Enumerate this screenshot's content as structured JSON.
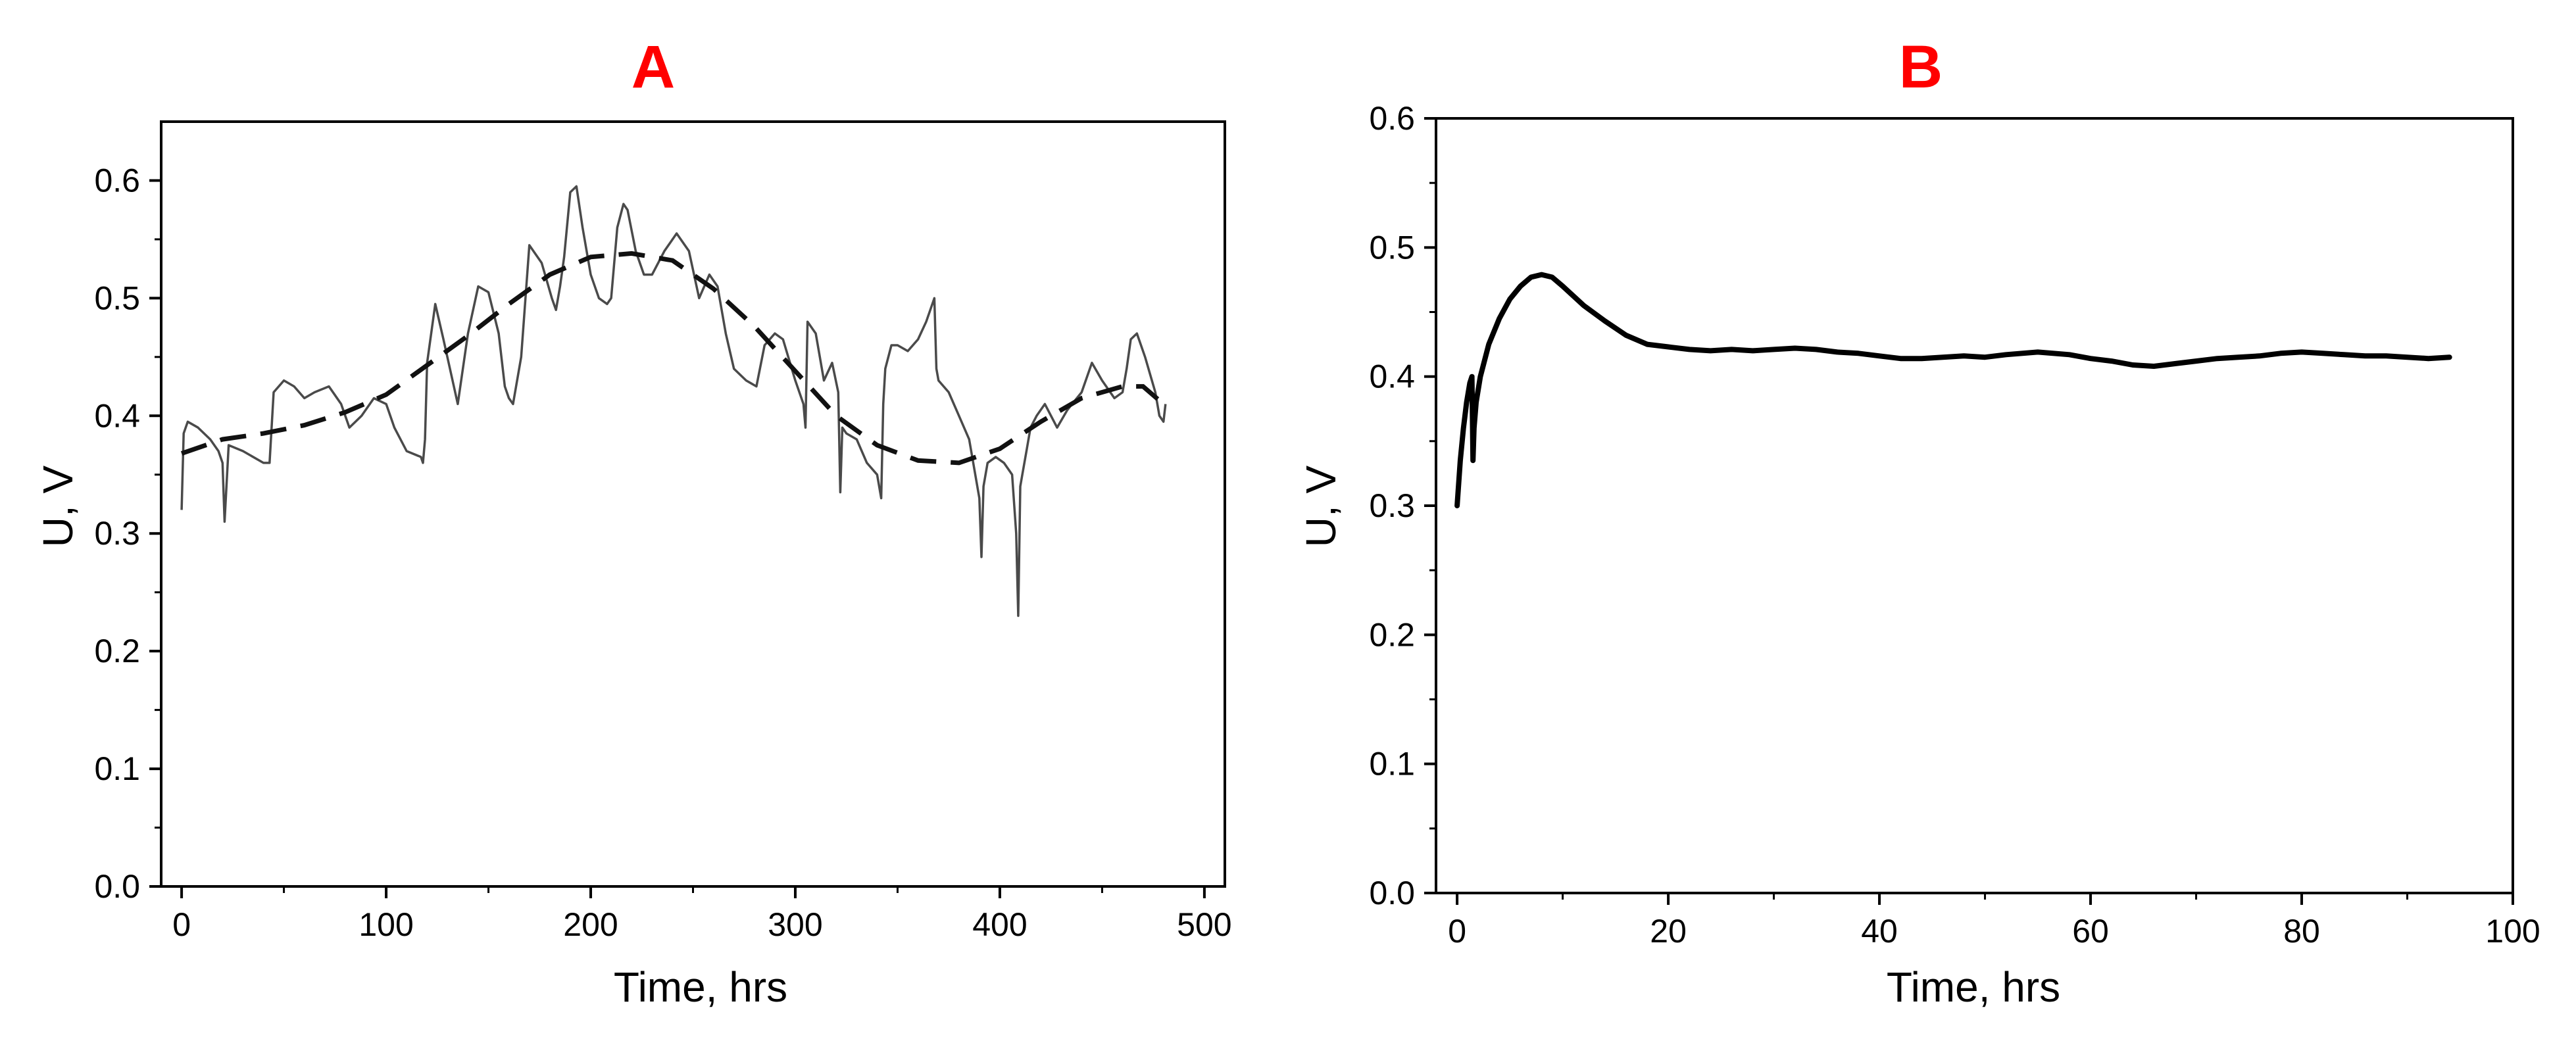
{
  "chart_data": [
    {
      "type": "line",
      "panel_label": "A",
      "xlabel": "Time, hrs",
      "ylabel": "U, V",
      "xlim": [
        -10,
        510
      ],
      "ylim": [
        0,
        0.65
      ],
      "xticks": [
        0,
        100,
        200,
        300,
        400,
        500
      ],
      "yticks": [
        0.0,
        0.1,
        0.2,
        0.3,
        0.4,
        0.5,
        0.6
      ],
      "grid": false,
      "series": [
        {
          "style": "solid",
          "x": [
            0,
            1,
            3,
            8,
            14,
            18,
            20,
            21,
            23,
            30,
            40,
            43,
            45,
            50,
            55,
            60,
            65,
            72,
            78,
            82,
            88,
            94,
            100,
            104,
            110,
            117,
            118,
            119,
            120,
            124,
            128,
            135,
            140,
            145,
            150,
            155,
            158,
            160,
            162,
            166,
            170,
            176,
            181,
            183,
            185,
            187,
            190,
            193,
            196,
            200,
            204,
            208,
            210,
            213,
            216,
            218,
            222,
            226,
            230,
            236,
            242,
            248,
            253,
            258,
            262,
            266,
            270,
            276,
            281,
            285,
            290,
            294,
            300,
            304,
            305,
            306,
            310,
            314,
            318,
            321,
            322,
            323,
            325,
            330,
            335,
            340,
            342,
            343,
            344,
            347,
            350,
            355,
            360,
            364,
            368,
            369,
            370,
            375,
            380,
            385,
            390,
            391,
            392,
            394,
            398,
            402,
            406,
            408,
            409,
            410,
            411,
            413,
            415,
            418,
            422,
            428,
            433,
            440,
            445,
            450,
            456,
            460,
            462,
            464,
            467,
            471,
            476,
            478,
            480,
            481
          ],
          "y": [
            0.32,
            0.385,
            0.395,
            0.39,
            0.38,
            0.37,
            0.36,
            0.31,
            0.375,
            0.37,
            0.36,
            0.36,
            0.42,
            0.43,
            0.425,
            0.415,
            0.42,
            0.425,
            0.41,
            0.39,
            0.4,
            0.415,
            0.41,
            0.39,
            0.37,
            0.365,
            0.36,
            0.38,
            0.445,
            0.495,
            0.465,
            0.41,
            0.47,
            0.51,
            0.505,
            0.47,
            0.425,
            0.415,
            0.41,
            0.45,
            0.545,
            0.53,
            0.5,
            0.49,
            0.51,
            0.535,
            0.59,
            0.595,
            0.56,
            0.52,
            0.5,
            0.495,
            0.5,
            0.56,
            0.58,
            0.575,
            0.54,
            0.52,
            0.52,
            0.54,
            0.555,
            0.54,
            0.5,
            0.52,
            0.51,
            0.47,
            0.44,
            0.43,
            0.425,
            0.46,
            0.47,
            0.465,
            0.43,
            0.41,
            0.39,
            0.48,
            0.47,
            0.43,
            0.445,
            0.42,
            0.335,
            0.39,
            0.385,
            0.38,
            0.36,
            0.35,
            0.33,
            0.41,
            0.44,
            0.46,
            0.46,
            0.455,
            0.465,
            0.48,
            0.5,
            0.44,
            0.43,
            0.42,
            0.4,
            0.38,
            0.33,
            0.28,
            0.34,
            0.36,
            0.365,
            0.36,
            0.35,
            0.3,
            0.23,
            0.34,
            0.35,
            0.37,
            0.39,
            0.4,
            0.41,
            0.39,
            0.405,
            0.42,
            0.445,
            0.43,
            0.415,
            0.42,
            0.44,
            0.465,
            0.47,
            0.45,
            0.42,
            0.4,
            0.395,
            0.41
          ]
        },
        {
          "style": "dashed",
          "x": [
            0,
            20,
            40,
            60,
            80,
            100,
            120,
            140,
            160,
            180,
            200,
            220,
            240,
            260,
            280,
            300,
            320,
            340,
            360,
            380,
            400,
            420,
            440,
            460,
            470,
            480
          ],
          "y": [
            0.368,
            0.38,
            0.385,
            0.392,
            0.403,
            0.418,
            0.443,
            0.468,
            0.495,
            0.52,
            0.535,
            0.538,
            0.532,
            0.508,
            0.476,
            0.438,
            0.4,
            0.375,
            0.362,
            0.36,
            0.372,
            0.395,
            0.415,
            0.425,
            0.425,
            0.41
          ]
        }
      ]
    },
    {
      "type": "line",
      "panel_label": "B",
      "xlabel": "Time, hrs",
      "ylabel": "U, V",
      "xlim": [
        -2,
        100
      ],
      "ylim": [
        0,
        0.6
      ],
      "xticks": [
        0,
        20,
        40,
        60,
        80,
        100
      ],
      "yticks": [
        0.0,
        0.1,
        0.2,
        0.3,
        0.4,
        0.5,
        0.6
      ],
      "grid": false,
      "series": [
        {
          "style": "solid",
          "x": [
            0,
            0.3,
            0.6,
            0.9,
            1.2,
            1.4,
            1.5,
            1.6,
            1.8,
            2.2,
            3,
            4,
            5,
            6,
            7,
            8,
            9,
            10,
            12,
            14,
            16,
            18,
            20,
            22,
            24,
            26,
            28,
            30,
            32,
            34,
            36,
            38,
            40,
            42,
            44,
            46,
            48,
            50,
            52,
            55,
            58,
            60,
            62,
            64,
            66,
            68,
            70,
            72,
            74,
            76,
            78,
            80,
            82,
            84,
            86,
            88,
            90,
            92,
            94
          ],
          "y": [
            0.3,
            0.335,
            0.36,
            0.38,
            0.395,
            0.4,
            0.335,
            0.36,
            0.38,
            0.4,
            0.425,
            0.445,
            0.46,
            0.47,
            0.477,
            0.479,
            0.477,
            0.47,
            0.455,
            0.443,
            0.432,
            0.425,
            0.423,
            0.421,
            0.42,
            0.421,
            0.42,
            0.421,
            0.422,
            0.421,
            0.419,
            0.418,
            0.416,
            0.414,
            0.414,
            0.415,
            0.416,
            0.415,
            0.417,
            0.419,
            0.417,
            0.414,
            0.412,
            0.409,
            0.408,
            0.41,
            0.412,
            0.414,
            0.415,
            0.416,
            0.418,
            0.419,
            0.418,
            0.417,
            0.416,
            0.416,
            0.415,
            0.414,
            0.415
          ]
        }
      ]
    }
  ]
}
